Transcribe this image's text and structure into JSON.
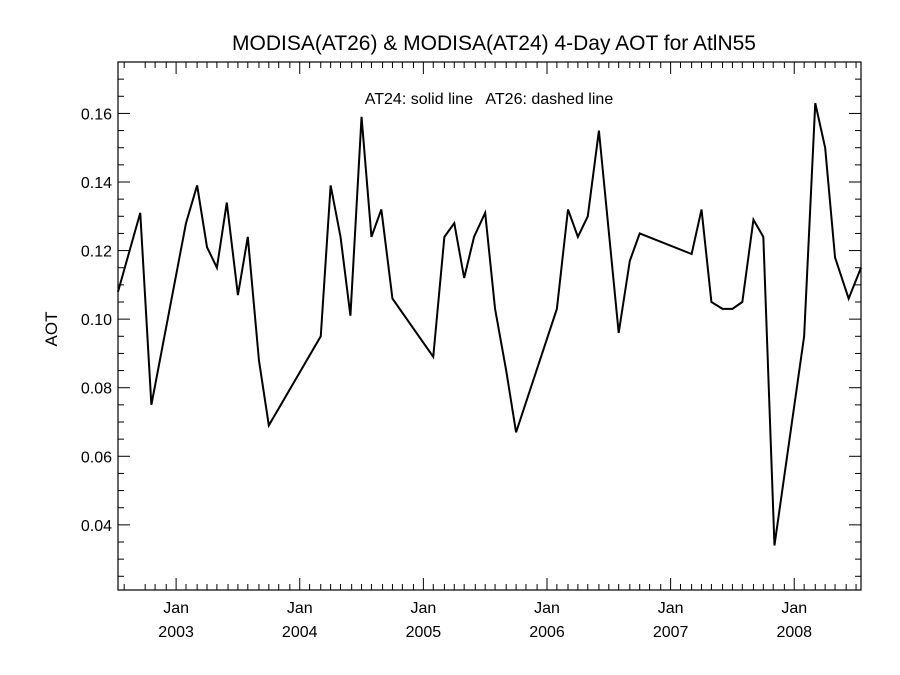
{
  "chart_data": {
    "type": "line",
    "title": "MODISA(AT26) & MODISA(AT24) 4-Day AOT for AtlN55",
    "xlabel": "",
    "ylabel": "AOT",
    "annotation": "AT24: solid line   AT26: dashed line",
    "xlim": [
      2002.53,
      2008.54
    ],
    "ylim": [
      0.021,
      0.175
    ],
    "grid": false,
    "x_ticks": [
      {
        "x": 2003.0,
        "month": "Jan",
        "year": "2003"
      },
      {
        "x": 2004.0,
        "month": "Jan",
        "year": "2004"
      },
      {
        "x": 2005.0,
        "month": "Jan",
        "year": "2005"
      },
      {
        "x": 2006.0,
        "month": "Jan",
        "year": "2006"
      },
      {
        "x": 2007.0,
        "month": "Jan",
        "year": "2007"
      },
      {
        "x": 2008.0,
        "month": "Jan",
        "year": "2008"
      }
    ],
    "y_ticks": [
      {
        "value": 0.04,
        "label": "0.04"
      },
      {
        "value": 0.06,
        "label": "0.06"
      },
      {
        "value": 0.08,
        "label": "0.08"
      },
      {
        "value": 0.1,
        "label": "0.10"
      },
      {
        "value": 0.12,
        "label": "0.12"
      },
      {
        "value": 0.14,
        "label": "0.14"
      },
      {
        "value": 0.16,
        "label": "0.16"
      }
    ],
    "y_minor_step": 0.005,
    "x_minor_ticks": [
      2002.58,
      2002.75,
      2002.83,
      2002.92,
      2003.08,
      2003.17,
      2003.25,
      2003.33,
      2003.42,
      2003.5,
      2003.58,
      2003.67,
      2003.75,
      2003.83,
      2003.92,
      2004.08,
      2004.17,
      2004.25,
      2004.33,
      2004.42,
      2004.5,
      2004.58,
      2004.67,
      2004.75,
      2004.83,
      2004.92,
      2005.08,
      2005.17,
      2005.25,
      2005.33,
      2005.42,
      2005.5,
      2005.58,
      2005.67,
      2005.75,
      2005.83,
      2005.92,
      2006.08,
      2006.17,
      2006.25,
      2006.33,
      2006.42,
      2006.5,
      2006.58,
      2006.67,
      2006.75,
      2006.83,
      2006.92,
      2007.08,
      2007.17,
      2007.25,
      2007.33,
      2007.42,
      2007.5,
      2007.58,
      2007.67,
      2007.75,
      2007.83,
      2007.92,
      2008.08,
      2008.17,
      2008.25,
      2008.33,
      2008.42,
      2008.5
    ],
    "series": [
      {
        "style": "solid",
        "points": [
          [
            2002.53,
            0.108
          ],
          [
            2002.71,
            0.131
          ],
          [
            2002.8,
            0.075
          ],
          [
            2003.08,
            0.128
          ],
          [
            2003.17,
            0.139
          ],
          [
            2003.25,
            0.121
          ],
          [
            2003.33,
            0.115
          ],
          [
            2003.41,
            0.134
          ],
          [
            2003.5,
            0.107
          ],
          [
            2003.58,
            0.124
          ],
          [
            2003.67,
            0.088
          ],
          [
            2003.75,
            0.069
          ],
          [
            2004.17,
            0.095
          ],
          [
            2004.25,
            0.139
          ],
          [
            2004.33,
            0.124
          ],
          [
            2004.41,
            0.101
          ],
          [
            2004.5,
            0.159
          ],
          [
            2004.58,
            0.124
          ],
          [
            2004.66,
            0.132
          ],
          [
            2004.75,
            0.106
          ],
          [
            2005.08,
            0.089
          ],
          [
            2005.17,
            0.124
          ],
          [
            2005.25,
            0.128
          ],
          [
            2005.33,
            0.112
          ],
          [
            2005.41,
            0.124
          ],
          [
            2005.5,
            0.131
          ],
          [
            2005.58,
            0.103
          ],
          [
            2005.67,
            0.085
          ],
          [
            2005.75,
            0.067
          ],
          [
            2006.08,
            0.103
          ],
          [
            2006.17,
            0.132
          ],
          [
            2006.25,
            0.124
          ],
          [
            2006.33,
            0.13
          ],
          [
            2006.42,
            0.155
          ],
          [
            2006.58,
            0.096
          ],
          [
            2006.67,
            0.117
          ],
          [
            2006.75,
            0.125
          ],
          [
            2007.17,
            0.119
          ],
          [
            2007.25,
            0.132
          ],
          [
            2007.33,
            0.105
          ],
          [
            2007.42,
            0.103
          ],
          [
            2007.5,
            0.103
          ],
          [
            2007.58,
            0.105
          ],
          [
            2007.67,
            0.129
          ],
          [
            2007.75,
            0.124
          ],
          [
            2007.84,
            0.034
          ],
          [
            2008.08,
            0.095
          ],
          [
            2008.17,
            0.163
          ],
          [
            2008.25,
            0.15
          ],
          [
            2008.33,
            0.118
          ],
          [
            2008.44,
            0.106
          ],
          [
            2008.54,
            0.115
          ]
        ]
      }
    ]
  }
}
